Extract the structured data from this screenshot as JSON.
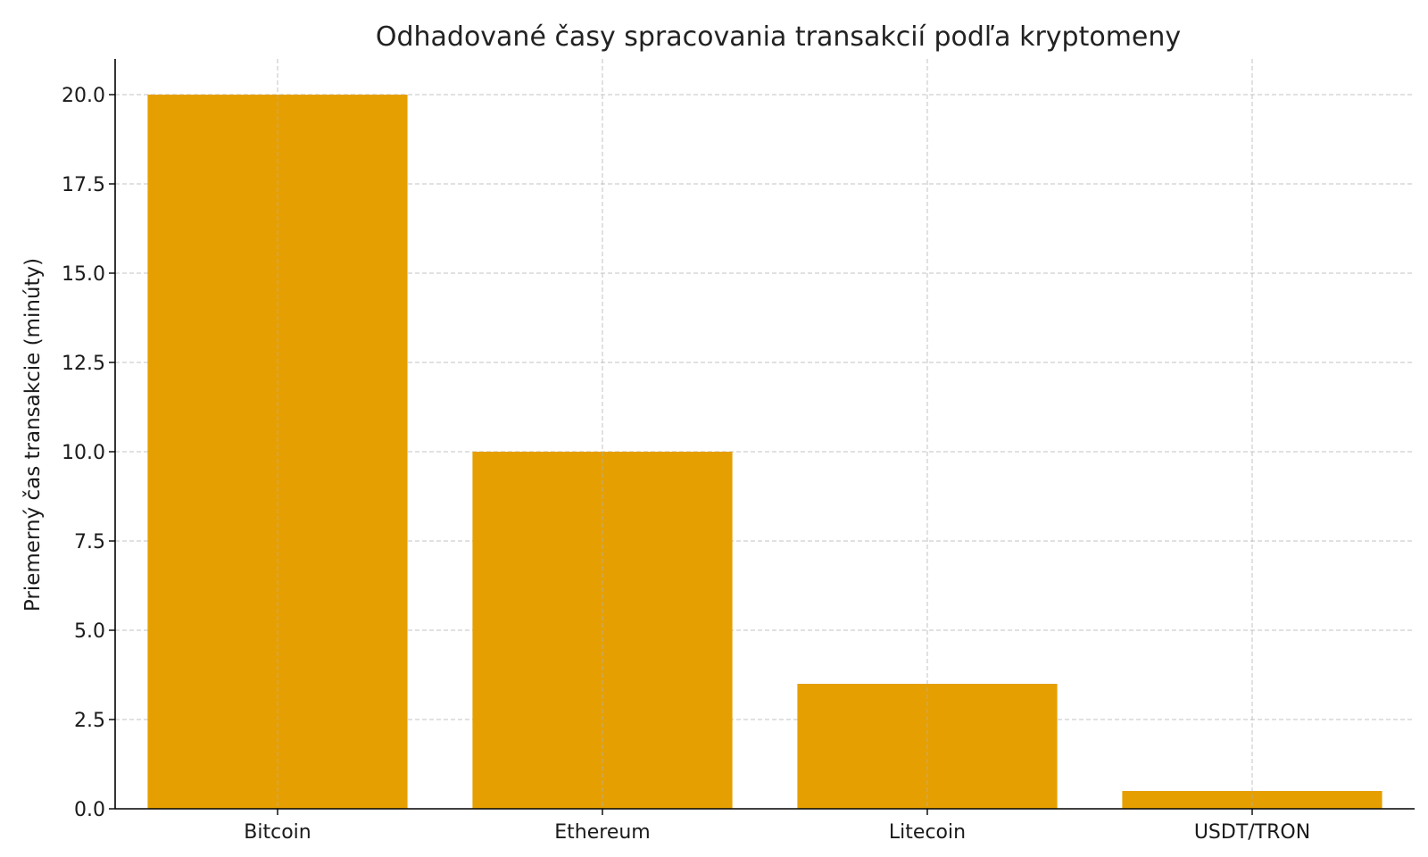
{
  "chart_data": {
    "type": "bar",
    "title": "Odhadované časy spracovania transakcií podľa kryptomeny",
    "xlabel": "",
    "ylabel": "Priemerný čas transakcie (minúty)",
    "categories": [
      "Bitcoin",
      "Ethereum",
      "Litecoin",
      "USDT/TRON"
    ],
    "values": [
      20,
      10,
      3.5,
      0.5
    ],
    "ylim": [
      0,
      21
    ],
    "yticks": [
      0,
      2.5,
      5,
      7.5,
      10,
      12.5,
      15,
      17.5,
      20
    ],
    "ytick_labels": [
      "0.0",
      "2.5",
      "5.0",
      "7.5",
      "10.0",
      "12.5",
      "15.0",
      "17.5",
      "20.0"
    ],
    "bar_color": "#E69F00",
    "grid": true
  }
}
